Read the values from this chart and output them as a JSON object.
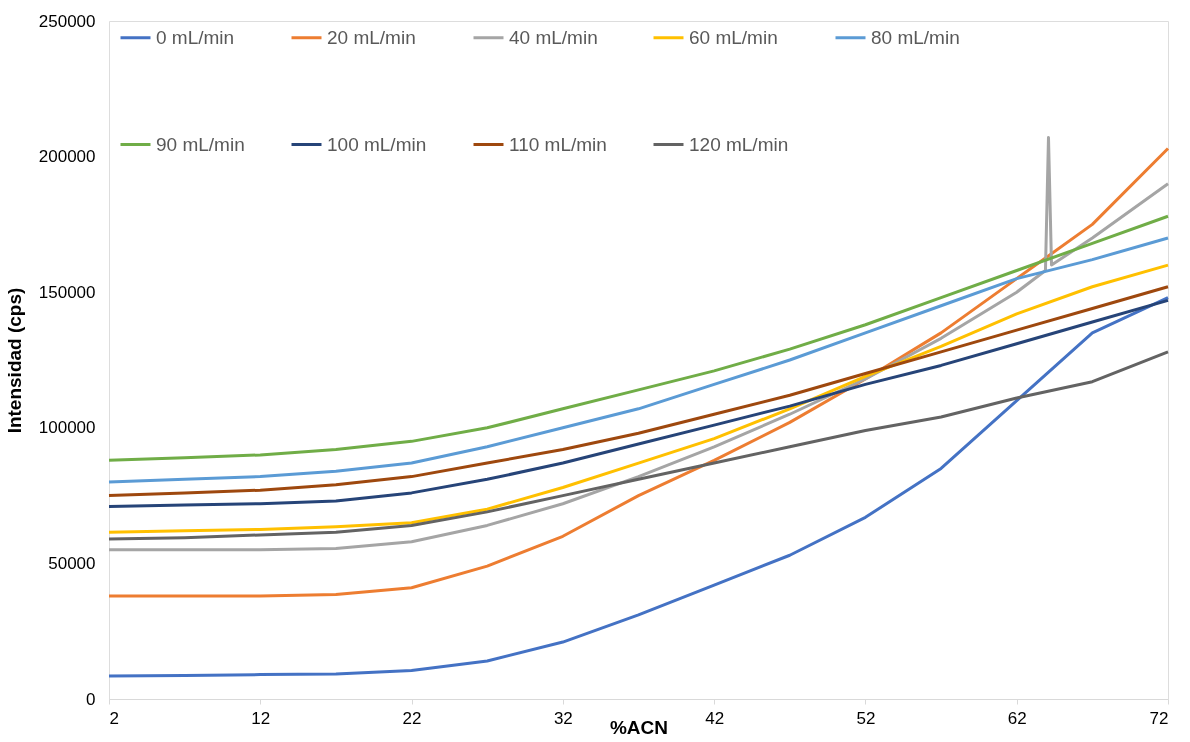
{
  "chart_data": {
    "type": "line",
    "xlabel": "%ACN",
    "ylabel": "Intensidad (cps)",
    "xlim": [
      2,
      72
    ],
    "xticks": [
      2,
      12,
      22,
      32,
      42,
      52,
      62,
      72
    ],
    "ylim": [
      0,
      250000
    ],
    "yticks": [
      0,
      50000,
      100000,
      150000,
      200000,
      250000
    ],
    "grid": false,
    "legend": "top",
    "marker": "none",
    "line_style": "solid",
    "x": [
      2,
      7,
      12,
      17,
      22,
      27,
      32,
      37,
      42,
      47,
      52,
      57,
      62,
      67,
      72
    ],
    "series": [
      {
        "name": "0 mL/min",
        "color": "#4472c4",
        "values": [
          8500,
          8700,
          9000,
          9200,
          10500,
          14000,
          21000,
          31000,
          42000,
          53000,
          67000,
          85000,
          110000,
          135000,
          148000
        ]
      },
      {
        "name": "20 mL/min",
        "color": "#ed7d31",
        "values": [
          38000,
          38000,
          38000,
          38500,
          41000,
          49000,
          60000,
          75000,
          88000,
          102000,
          118000,
          135000,
          155000,
          175000,
          203000
        ]
      },
      {
        "name": "40 mL/min",
        "color": "#a5a5a5",
        "x": [
          2,
          7,
          12,
          17,
          22,
          27,
          32,
          37,
          42,
          47,
          52,
          57,
          62,
          63.9,
          64.1,
          64.3,
          67,
          72
        ],
        "values": [
          55000,
          55000,
          55000,
          55500,
          58000,
          64000,
          72000,
          82000,
          93000,
          105000,
          118000,
          133000,
          150000,
          158000,
          207000,
          160000,
          170000,
          190000
        ]
      },
      {
        "name": "60 mL/min",
        "color": "#ffc000",
        "values": [
          61500,
          62000,
          62500,
          63500,
          65000,
          70000,
          78000,
          87000,
          96000,
          107000,
          119000,
          130000,
          142000,
          152000,
          160000
        ]
      },
      {
        "name": "80 mL/min",
        "color": "#5b9bd5",
        "values": [
          80000,
          81000,
          82000,
          84000,
          87000,
          93000,
          100000,
          107000,
          116000,
          125000,
          135000,
          145000,
          155000,
          162000,
          170000
        ]
      },
      {
        "name": "90 mL/min",
        "color": "#70ad47",
        "values": [
          88000,
          89000,
          90000,
          92000,
          95000,
          100000,
          107000,
          114000,
          121000,
          129000,
          138000,
          148000,
          158000,
          168000,
          178000
        ]
      },
      {
        "name": "100 mL/min",
        "color": "#264478",
        "values": [
          71000,
          71500,
          72000,
          73000,
          76000,
          81000,
          87000,
          94000,
          101000,
          108000,
          116000,
          123000,
          131000,
          139000,
          147000
        ]
      },
      {
        "name": "110 mL/min",
        "color": "#9e480e",
        "values": [
          75000,
          76000,
          77000,
          79000,
          82000,
          87000,
          92000,
          98000,
          105000,
          112000,
          120000,
          128000,
          136000,
          144000,
          152000
        ]
      },
      {
        "name": "120 mL/min",
        "color": "#636363",
        "values": [
          59000,
          59500,
          60500,
          61500,
          64000,
          69000,
          75000,
          81000,
          87000,
          93000,
          99000,
          104000,
          111000,
          117000,
          128000
        ]
      }
    ]
  }
}
